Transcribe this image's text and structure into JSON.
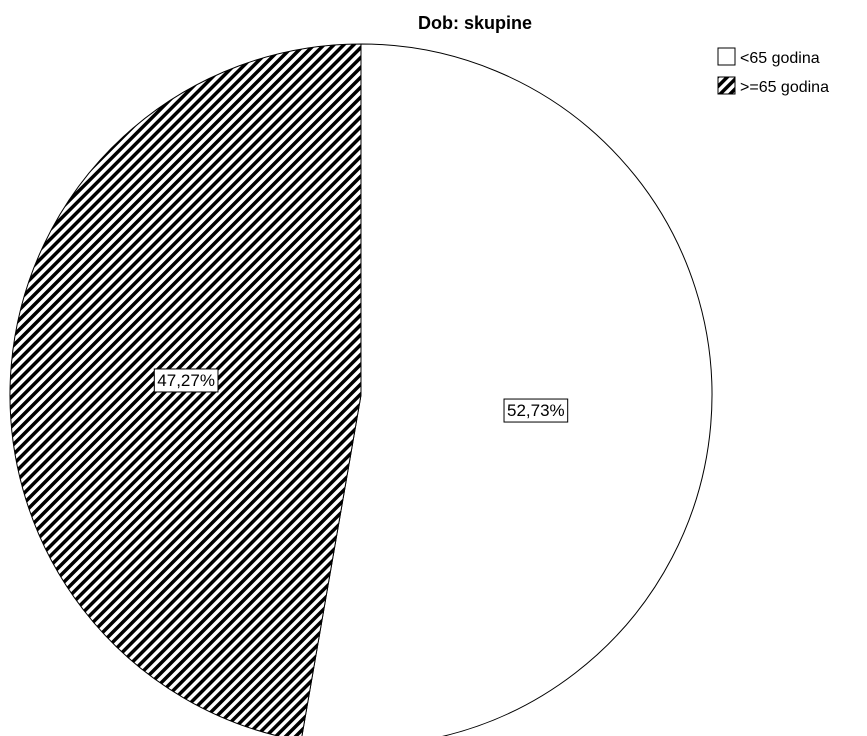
{
  "chart_data": {
    "type": "pie",
    "title": "Dob: skupine",
    "slices": [
      {
        "label": "<65 godina",
        "value": 52.73,
        "value_label": "52,73%",
        "fill": "#ffffff",
        "pattern": "none"
      },
      {
        "label": ">=65 godina",
        "value": 47.27,
        "value_label": "47,27%",
        "fill": "#000000",
        "pattern": "diagonal-hatch"
      }
    ],
    "start_angle": "12 o'clock",
    "direction": "clockwise",
    "legend_position": "top-right",
    "outline_color": "#000000"
  }
}
